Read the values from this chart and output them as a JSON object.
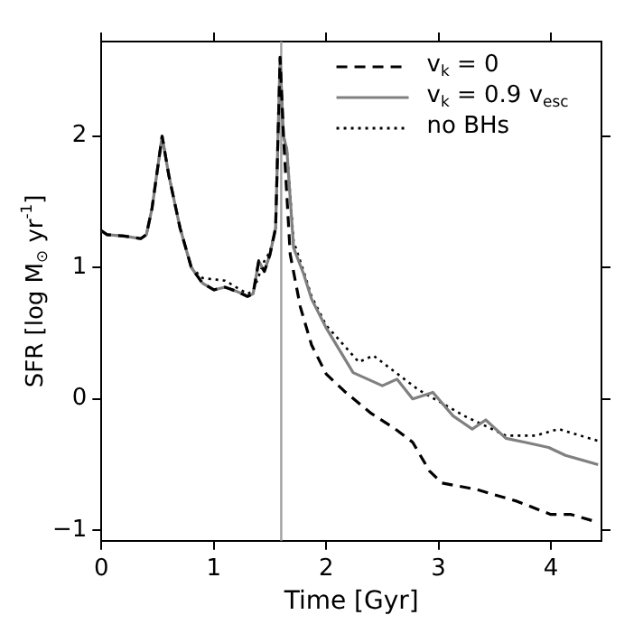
{
  "chart_data": {
    "type": "line",
    "xlabel": "Time [Gyr]",
    "ylabel": "SFR [log M$_{⊙}$ yr$^{-1}$]",
    "xlim": [
      0,
      4.45
    ],
    "ylim": [
      -1.08,
      2.72
    ],
    "xticks": [
      0,
      1,
      2,
      3,
      4
    ],
    "yticks": [
      -1,
      0,
      1,
      2
    ],
    "grid": false,
    "legend": "top right",
    "marker": "none",
    "ref_lines": [
      {
        "axis": "x",
        "value": 1.6,
        "color": "#a0a0a0",
        "line_style": "solid"
      }
    ],
    "series": [
      {
        "name": "v$_{k}$ = 0",
        "color": "#000000",
        "line_style": "dashed",
        "x": [
          0,
          0.05,
          0.2,
          0.35,
          0.4,
          0.45,
          0.54,
          0.6,
          0.65,
          0.7,
          0.8,
          0.9,
          1.0,
          1.1,
          1.2,
          1.3,
          1.35,
          1.4,
          1.45,
          1.5,
          1.55,
          1.59,
          1.62,
          1.68,
          1.77,
          1.87,
          2.0,
          2.16,
          2.4,
          2.6,
          2.77,
          2.92,
          3.03,
          3.34,
          3.7,
          4.0,
          4.18,
          4.42
        ],
        "values": [
          1.28,
          1.25,
          1.24,
          1.22,
          1.25,
          1.45,
          2.0,
          1.7,
          1.5,
          1.3,
          1.0,
          0.88,
          0.83,
          0.85,
          0.82,
          0.78,
          0.8,
          1.05,
          0.97,
          1.1,
          1.3,
          2.6,
          2.0,
          1.1,
          0.7,
          0.41,
          0.19,
          0.06,
          -0.11,
          -0.22,
          -0.33,
          -0.55,
          -0.64,
          -0.69,
          -0.78,
          -0.88,
          -0.88,
          -0.94
        ]
      },
      {
        "name": "v$_{k}$ = 0.9 v$_{esc}$",
        "color": "#808080",
        "line_style": "solid",
        "x": [
          0,
          0.05,
          0.2,
          0.35,
          0.4,
          0.45,
          0.54,
          0.6,
          0.65,
          0.7,
          0.8,
          0.9,
          1.0,
          1.1,
          1.2,
          1.3,
          1.35,
          1.4,
          1.45,
          1.5,
          1.55,
          1.59,
          1.62,
          1.65,
          1.71,
          1.8,
          1.87,
          2.0,
          2.24,
          2.5,
          2.63,
          2.77,
          2.95,
          3.13,
          3.3,
          3.42,
          3.6,
          3.77,
          3.98,
          4.13,
          4.42
        ],
        "values": [
          1.28,
          1.25,
          1.24,
          1.22,
          1.25,
          1.45,
          2.0,
          1.7,
          1.5,
          1.3,
          1.0,
          0.88,
          0.83,
          0.85,
          0.82,
          0.78,
          0.8,
          1.05,
          0.97,
          1.1,
          1.3,
          2.6,
          2.0,
          1.9,
          1.15,
          0.95,
          0.76,
          0.54,
          0.2,
          0.1,
          0.15,
          0.0,
          0.05,
          -0.13,
          -0.23,
          -0.16,
          -0.3,
          -0.33,
          -0.37,
          -0.43,
          -0.5
        ]
      },
      {
        "name": "no BHs",
        "color": "#000000",
        "line_style": "dotted",
        "x": [
          0,
          0.05,
          0.2,
          0.35,
          0.4,
          0.45,
          0.54,
          0.6,
          0.65,
          0.7,
          0.8,
          0.9,
          1.1,
          1.3,
          1.35,
          1.45,
          1.5,
          1.55,
          1.59,
          1.62,
          1.65,
          1.71,
          1.8,
          1.87,
          2.0,
          2.29,
          2.42,
          2.82,
          3.23,
          3.6,
          3.86,
          4.07,
          4.42
        ],
        "values": [
          1.28,
          1.25,
          1.24,
          1.22,
          1.25,
          1.45,
          2.0,
          1.7,
          1.5,
          1.3,
          1.0,
          0.92,
          0.9,
          0.8,
          0.82,
          1.05,
          1.12,
          1.3,
          2.6,
          2.0,
          1.9,
          1.2,
          0.97,
          0.78,
          0.56,
          0.28,
          0.33,
          0.07,
          -0.13,
          -0.28,
          -0.28,
          -0.23,
          -0.32
        ]
      }
    ]
  }
}
